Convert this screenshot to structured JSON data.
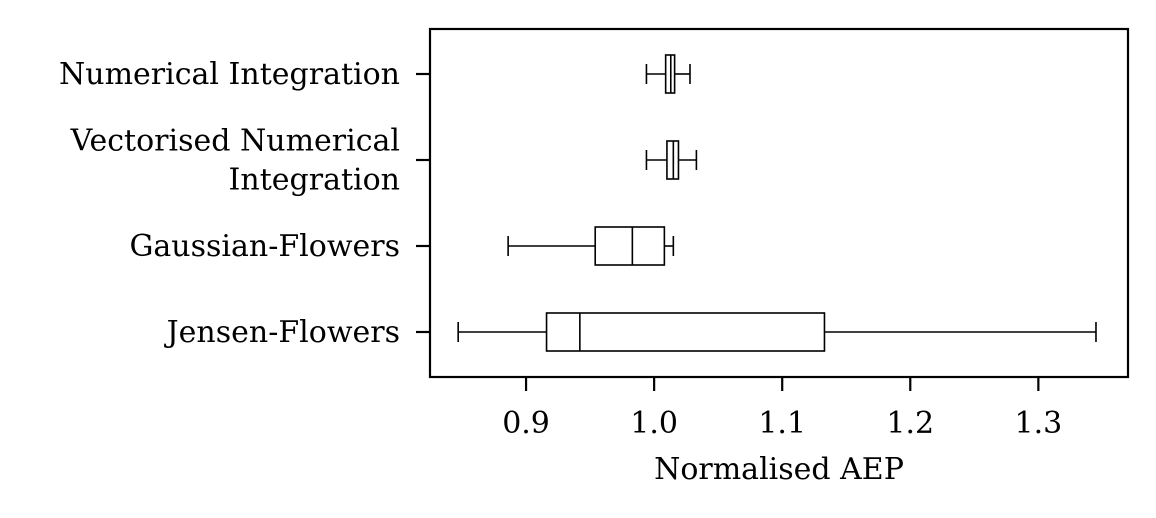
{
  "chart_data": {
    "type": "boxplot",
    "orientation": "horizontal",
    "title": "",
    "xlabel": "Normalised AEP",
    "ylabel": "",
    "xlim": [
      0.825,
      1.37
    ],
    "xticks": [
      0.9,
      1.0,
      1.1,
      1.2,
      1.3
    ],
    "xtick_labels": [
      "0.9",
      "1.0",
      "1.1",
      "1.2",
      "1.3"
    ],
    "grid": false,
    "legend": "none",
    "categories": [
      {
        "label_lines": [
          "Numerical Integration"
        ],
        "whisker_low": 0.994,
        "q1": 1.009,
        "median": 1.013,
        "q3": 1.016,
        "whisker_high": 1.028
      },
      {
        "label_lines": [
          "Vectorised Numerical",
          "Integration"
        ],
        "whisker_low": 0.994,
        "q1": 1.01,
        "median": 1.015,
        "q3": 1.019,
        "whisker_high": 1.033
      },
      {
        "label_lines": [
          "Gaussian-Flowers"
        ],
        "whisker_low": 0.886,
        "q1": 0.954,
        "median": 0.983,
        "q3": 1.008,
        "whisker_high": 1.015
      },
      {
        "label_lines": [
          "Jensen-Flowers"
        ],
        "whisker_low": 0.847,
        "q1": 0.916,
        "median": 0.942,
        "q3": 1.133,
        "whisker_high": 1.345
      }
    ],
    "colors": {
      "line": "#000000",
      "fill": "#ffffff"
    }
  }
}
